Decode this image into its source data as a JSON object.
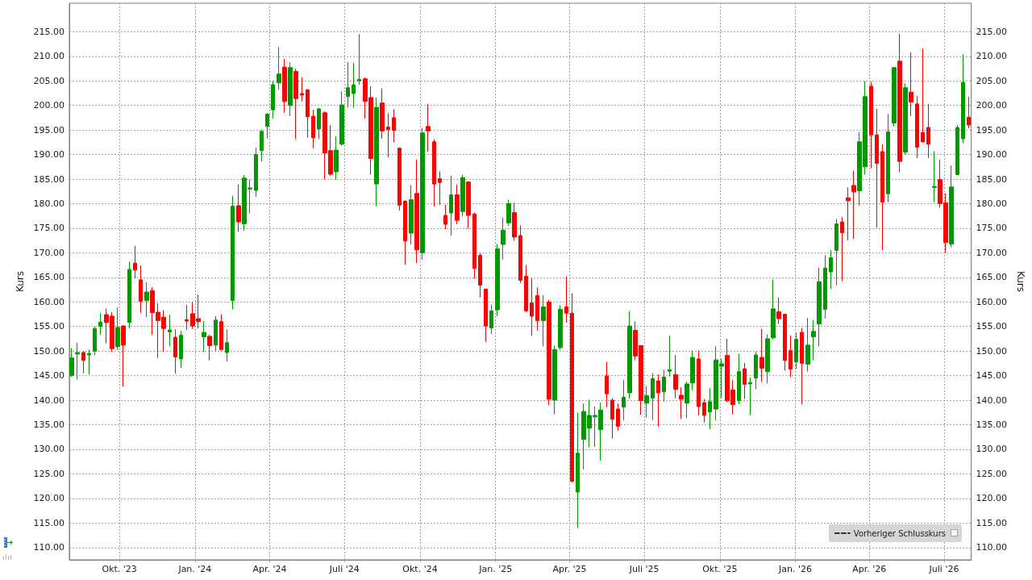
{
  "chart_data": {
    "type": "candlestick",
    "ylabel": "Kurs",
    "y2label": "Kurs",
    "x": [
      "2023-08-04",
      "2023-08-11",
      "2023-08-18",
      "2023-08-25",
      "2023-09-01",
      "2023-09-08",
      "2023-09-15",
      "2023-09-22",
      "2023-09-29",
      "2023-10-06",
      "2023-10-13",
      "2023-10-20",
      "2023-10-27",
      "2023-11-03",
      "2023-11-10",
      "2023-11-17",
      "2023-11-24",
      "2023-12-01",
      "2023-12-08",
      "2023-12-15",
      "2023-12-22",
      "2023-12-29",
      "2024-01-05",
      "2024-01-12",
      "2024-01-19",
      "2024-01-26",
      "2024-02-02",
      "2024-02-09",
      "2024-02-16",
      "2024-02-23",
      "2024-03-01",
      "2024-03-08",
      "2024-03-15",
      "2024-03-22",
      "2024-03-29",
      "2024-04-05",
      "2024-04-12",
      "2024-04-19",
      "2024-04-26",
      "2024-05-03",
      "2024-05-10",
      "2024-05-17",
      "2024-05-24",
      "2024-05-31",
      "2024-06-07",
      "2024-06-14",
      "2024-06-21",
      "2024-06-28",
      "2024-07-05",
      "2024-07-12",
      "2024-07-19",
      "2024-07-26",
      "2024-08-02",
      "2024-08-09",
      "2024-08-16",
      "2024-08-23",
      "2024-08-30",
      "2024-09-06",
      "2024-09-13",
      "2024-09-20",
      "2024-09-27",
      "2024-10-04",
      "2024-10-11",
      "2024-10-18",
      "2024-10-25",
      "2024-11-01",
      "2024-11-08",
      "2024-11-15",
      "2024-11-22",
      "2024-11-29",
      "2024-12-06",
      "2024-12-13",
      "2024-12-20",
      "2024-12-27",
      "2025-01-03",
      "2025-01-10",
      "2025-01-17",
      "2025-01-24",
      "2025-01-31",
      "2025-02-07",
      "2025-02-14",
      "2025-02-21",
      "2025-02-28",
      "2025-03-07",
      "2025-03-14",
      "2025-03-21",
      "2025-03-28",
      "2025-04-04",
      "2025-04-11",
      "2025-04-18",
      "2025-04-25",
      "2025-05-02",
      "2025-05-09",
      "2025-05-16",
      "2025-05-23",
      "2025-05-30",
      "2025-06-06",
      "2025-06-13",
      "2025-06-20",
      "2025-06-27",
      "2025-07-04",
      "2025-07-11",
      "2025-07-18",
      "2025-07-25",
      "2025-08-01",
      "2025-08-08",
      "2025-08-15",
      "2025-08-22",
      "2025-08-29",
      "2025-09-05",
      "2025-09-12",
      "2025-09-19",
      "2025-09-26",
      "2025-10-03",
      "2025-10-10",
      "2025-10-17",
      "2025-10-24",
      "2025-10-31",
      "2025-11-07",
      "2025-11-14",
      "2025-11-21",
      "2025-11-28",
      "2025-12-05",
      "2025-12-12",
      "2025-12-19",
      "2025-12-26",
      "2026-01-02",
      "2026-01-09",
      "2026-01-16",
      "2026-01-23",
      "2026-01-30",
      "2026-02-06",
      "2026-02-13",
      "2026-02-20",
      "2026-02-27",
      "2026-03-06",
      "2026-03-13",
      "2026-03-20",
      "2026-03-27",
      "2026-04-03",
      "2026-04-10",
      "2026-04-17",
      "2026-04-24",
      "2026-05-01",
      "2026-05-08",
      "2026-05-15",
      "2026-05-22",
      "2026-05-29",
      "2026-06-05",
      "2026-06-12",
      "2026-06-19",
      "2026-06-26",
      "2026-07-03",
      "2026-07-10",
      "2026-07-17",
      "2026-07-24",
      "2026-07-31"
    ],
    "series": [
      {
        "ohlc": [
          [
            145.0,
            150.6,
            144.7,
            148.6
          ],
          [
            149.4,
            151.7,
            144.2,
            149.7
          ],
          [
            149.7,
            150.0,
            145.5,
            148.1
          ],
          [
            149.2,
            150.3,
            145.2,
            149.5
          ],
          [
            150.0,
            155.0,
            149.1,
            154.6
          ],
          [
            155.0,
            157.7,
            153.3,
            155.9
          ],
          [
            157.4,
            158.6,
            151.6,
            155.8
          ],
          [
            157.1,
            157.9,
            149.8,
            150.5
          ],
          [
            150.9,
            158.9,
            150.2,
            154.8
          ],
          [
            155.1,
            155.3,
            142.8,
            151.2
          ],
          [
            155.8,
            168.2,
            154.6,
            166.6
          ],
          [
            167.9,
            171.4,
            164.8,
            166.5
          ],
          [
            164.5,
            167.4,
            157.7,
            160.1
          ],
          [
            160.3,
            164.0,
            156.9,
            162.0
          ],
          [
            162.3,
            163.0,
            153.3,
            157.8
          ],
          [
            157.9,
            159.7,
            148.6,
            156.2
          ],
          [
            156.9,
            158.3,
            149.9,
            154.6
          ],
          [
            153.9,
            157.4,
            151.0,
            154.3
          ],
          [
            152.8,
            154.4,
            145.4,
            148.8
          ],
          [
            148.4,
            154.1,
            146.6,
            153.2
          ],
          [
            156.4,
            159.4,
            154.3,
            156.1
          ],
          [
            157.6,
            159.9,
            154.5,
            155.1
          ],
          [
            156.6,
            161.5,
            154.6,
            156.0
          ],
          [
            152.9,
            156.1,
            149.8,
            153.8
          ],
          [
            153.0,
            153.3,
            148.1,
            151.1
          ],
          [
            151.2,
            157.1,
            150.0,
            156.3
          ],
          [
            156.0,
            157.5,
            150.1,
            150.3
          ],
          [
            149.7,
            154.4,
            147.9,
            151.7
          ],
          [
            160.3,
            181.6,
            158.5,
            179.5
          ],
          [
            179.6,
            183.9,
            174.3,
            176.3
          ],
          [
            175.9,
            185.8,
            174.5,
            185.2
          ],
          [
            183.0,
            184.9,
            178.0,
            183.2
          ],
          [
            182.7,
            191.4,
            181.4,
            190.0
          ],
          [
            190.8,
            195.0,
            188.6,
            194.7
          ],
          [
            195.7,
            198.5,
            193.3,
            198.2
          ],
          [
            199.1,
            205.0,
            197.3,
            204.2
          ],
          [
            204.6,
            211.9,
            203.2,
            206.4
          ],
          [
            207.8,
            209.5,
            198.5,
            200.8
          ],
          [
            200.0,
            208.8,
            197.8,
            207.7
          ],
          [
            206.9,
            207.5,
            193.1,
            201.4
          ],
          [
            202.4,
            205.7,
            200.8,
            202.1
          ],
          [
            203.2,
            203.3,
            193.4,
            197.7
          ],
          [
            197.8,
            199.1,
            191.3,
            193.4
          ],
          [
            195.2,
            199.5,
            193.1,
            199.3
          ],
          [
            198.5,
            198.8,
            184.9,
            190.3
          ],
          [
            190.8,
            196.0,
            185.6,
            186.0
          ],
          [
            186.5,
            193.7,
            184.9,
            190.9
          ],
          [
            192.1,
            202.9,
            191.8,
            200.1
          ],
          [
            201.8,
            208.8,
            199.6,
            203.6
          ],
          [
            202.4,
            208.7,
            199.5,
            204.2
          ],
          [
            205.0,
            214.5,
            204.2,
            205.3
          ],
          [
            205.4,
            205.7,
            197.3,
            200.8
          ],
          [
            201.6,
            203.9,
            185.9,
            189.2
          ],
          [
            184.0,
            201.6,
            179.5,
            199.6
          ],
          [
            200.5,
            203.5,
            193.2,
            194.8
          ],
          [
            195.6,
            198.4,
            189.4,
            195.1
          ],
          [
            197.5,
            199.2,
            192.5,
            194.9
          ],
          [
            191.3,
            191.4,
            178.6,
            179.7
          ],
          [
            180.5,
            180.7,
            167.6,
            172.4
          ],
          [
            174.0,
            183.8,
            171.7,
            180.8
          ],
          [
            182.1,
            189.0,
            167.9,
            170.6
          ],
          [
            170.0,
            195.4,
            168.6,
            194.4
          ],
          [
            195.7,
            200.3,
            190.6,
            194.8
          ],
          [
            192.6,
            193.1,
            179.4,
            184.0
          ],
          [
            185.1,
            186.6,
            179.7,
            184.3
          ],
          [
            177.6,
            179.8,
            174.8,
            175.8
          ],
          [
            178.1,
            185.7,
            173.5,
            181.8
          ],
          [
            181.8,
            183.9,
            175.8,
            176.6
          ],
          [
            178.4,
            185.9,
            177.4,
            185.3
          ],
          [
            184.4,
            184.6,
            175.0,
            177.6
          ],
          [
            177.9,
            178.2,
            164.7,
            166.8
          ],
          [
            169.5,
            169.9,
            160.9,
            163.4
          ],
          [
            162.6,
            162.7,
            151.9,
            155.1
          ],
          [
            154.7,
            159.5,
            153.5,
            158.2
          ],
          [
            158.4,
            171.8,
            157.1,
            170.8
          ],
          [
            171.7,
            177.2,
            168.6,
            174.6
          ],
          [
            176.1,
            180.8,
            175.5,
            180.0
          ],
          [
            178.2,
            180.2,
            172.4,
            173.2
          ],
          [
            173.5,
            175.6,
            163.8,
            164.4
          ],
          [
            165.2,
            167.5,
            157.9,
            158.2
          ],
          [
            159.8,
            164.8,
            153.1,
            157.1
          ],
          [
            161.3,
            162.9,
            154.2,
            156.2
          ],
          [
            156.2,
            161.4,
            151.0,
            159.0
          ],
          [
            160.0,
            160.4,
            139.0,
            140.2
          ],
          [
            140.0,
            151.1,
            137.1,
            150.3
          ],
          [
            150.7,
            159.3,
            150.2,
            158.5
          ],
          [
            159.0,
            165.2,
            155.8,
            157.7
          ],
          [
            157.7,
            161.8,
            123.2,
            123.5
          ],
          [
            121.3,
            137.5,
            114.0,
            129.2
          ],
          [
            132.0,
            139.3,
            125.9,
            137.7
          ],
          [
            134.3,
            140.1,
            130.4,
            136.9
          ],
          [
            136.6,
            138.7,
            130.5,
            136.9
          ],
          [
            134.0,
            139.5,
            127.7,
            138.0
          ],
          [
            144.9,
            147.8,
            138.6,
            141.3
          ],
          [
            140.0,
            140.4,
            132.2,
            136.1
          ],
          [
            138.2,
            139.3,
            133.8,
            134.7
          ],
          [
            138.6,
            144.1,
            135.9,
            140.6
          ],
          [
            141.5,
            158.1,
            140.3,
            155.1
          ],
          [
            154.2,
            156.0,
            148.1,
            149.0
          ],
          [
            151.1,
            151.2,
            137.0,
            139.9
          ],
          [
            139.4,
            142.9,
            136.4,
            140.9
          ],
          [
            140.4,
            145.5,
            135.9,
            144.4
          ],
          [
            143.9,
            145.2,
            134.6,
            141.5
          ],
          [
            141.7,
            146.2,
            139.7,
            144.7
          ],
          [
            145.9,
            153.1,
            144.8,
            146.2
          ],
          [
            145.2,
            149.2,
            140.4,
            142.2
          ],
          [
            141.0,
            142.6,
            136.2,
            140.2
          ],
          [
            139.4,
            143.8,
            136.3,
            143.3
          ],
          [
            143.5,
            150.1,
            142.0,
            148.7
          ],
          [
            148.4,
            150.1,
            136.9,
            138.7
          ],
          [
            139.5,
            140.2,
            135.4,
            136.9
          ],
          [
            137.6,
            142.4,
            134.1,
            139.7
          ],
          [
            138.2,
            151.0,
            135.9,
            148.2
          ],
          [
            146.9,
            148.4,
            140.5,
            147.4
          ],
          [
            149.1,
            152.5,
            139.6,
            139.9
          ],
          [
            142.1,
            144.1,
            137.1,
            139.1
          ],
          [
            139.9,
            149.4,
            139.2,
            145.8
          ],
          [
            146.4,
            147.6,
            140.2,
            143.2
          ],
          [
            143.3,
            144.6,
            136.9,
            143.6
          ],
          [
            144.5,
            149.9,
            142.2,
            149.2
          ],
          [
            148.7,
            154.5,
            143.7,
            146.5
          ],
          [
            145.8,
            153.4,
            143.4,
            152.5
          ],
          [
            152.7,
            164.6,
            152.3,
            158.6
          ],
          [
            158.0,
            160.9,
            155.5,
            156.6
          ],
          [
            157.5,
            157.6,
            146.0,
            148.1
          ],
          [
            150.1,
            153.2,
            144.7,
            146.3
          ],
          [
            147.8,
            153.7,
            146.4,
            152.4
          ],
          [
            153.8,
            154.7,
            139.2,
            147.5
          ],
          [
            147.3,
            156.8,
            145.8,
            151.2
          ],
          [
            152.9,
            156.3,
            148.1,
            154.0
          ],
          [
            155.5,
            167.0,
            150.9,
            164.1
          ],
          [
            158.5,
            169.5,
            156.6,
            166.9
          ],
          [
            166.1,
            170.6,
            162.6,
            169.0
          ],
          [
            170.5,
            176.9,
            163.4,
            175.9
          ],
          [
            176.3,
            177.3,
            164.2,
            174.1
          ],
          [
            181.2,
            183.3,
            172.5,
            180.6
          ],
          [
            183.7,
            186.7,
            172.8,
            182.4
          ],
          [
            182.6,
            194.6,
            179.6,
            192.6
          ],
          [
            187.5,
            204.9,
            185.9,
            201.8
          ],
          [
            203.9,
            204.8,
            187.2,
            194.0
          ],
          [
            194.0,
            199.3,
            175.1,
            188.2
          ],
          [
            190.6,
            192.1,
            170.5,
            180.3
          ],
          [
            182.0,
            198.3,
            180.3,
            194.6
          ],
          [
            196.4,
            207.8,
            195.7,
            207.7
          ],
          [
            209.0,
            214.6,
            186.4,
            188.6
          ],
          [
            190.5,
            204.5,
            190.0,
            203.6
          ],
          [
            202.7,
            210.8,
            197.8,
            200.7
          ],
          [
            200.3,
            201.9,
            189.3,
            191.5
          ],
          [
            194.5,
            211.6,
            192.4,
            192.6
          ],
          [
            195.5,
            200.3,
            189.3,
            192.1
          ],
          [
            183.3,
            190.7,
            180.3,
            183.5
          ],
          [
            184.9,
            189.0,
            179.2,
            180.0
          ],
          [
            180.2,
            182.1,
            170.0,
            172.1
          ],
          [
            171.8,
            187.8,
            171.1,
            183.4
          ],
          [
            185.9,
            196.0,
            185.8,
            195.5
          ],
          [
            193.2,
            210.4,
            192.3,
            204.7
          ],
          [
            197.6,
            201.8,
            195.3,
            196.0
          ]
        ],
        "colors": [
          "#009900",
          "#009900",
          "#ff0000",
          "#009900",
          "#009900",
          "#009900",
          "#ff0000",
          "#ff0000",
          "#009900",
          "#ff0000",
          "#009900",
          "#ff0000",
          "#ff0000",
          "#009900",
          "#ff0000",
          "#ff0000",
          "#ff0000",
          "#009900",
          "#ff0000",
          "#009900",
          "#ff0000",
          "#ff0000",
          "#ff0000",
          "#009900",
          "#ff0000",
          "#009900",
          "#ff0000",
          "#009900",
          "#009900",
          "#ff0000",
          "#009900",
          "#009900",
          "#009900",
          "#009900",
          "#009900",
          "#009900",
          "#009900",
          "#ff0000",
          "#009900",
          "#ff0000",
          "#ff0000",
          "#ff0000",
          "#ff0000",
          "#009900",
          "#ff0000",
          "#ff0000",
          "#009900",
          "#009900",
          "#009900",
          "#009900",
          "#009900",
          "#ff0000",
          "#ff0000",
          "#009900",
          "#ff0000",
          "#ff0000",
          "#ff0000",
          "#ff0000",
          "#ff0000",
          "#009900",
          "#ff0000",
          "#009900",
          "#ff0000",
          "#ff0000",
          "#ff0000",
          "#ff0000",
          "#009900",
          "#ff0000",
          "#009900",
          "#ff0000",
          "#ff0000",
          "#ff0000",
          "#ff0000",
          "#009900",
          "#009900",
          "#009900",
          "#009900",
          "#ff0000",
          "#ff0000",
          "#ff0000",
          "#ff0000",
          "#ff0000",
          "#009900",
          "#ff0000",
          "#009900",
          "#009900",
          "#ff0000",
          "#ff0000",
          "#009900",
          "#009900",
          "#009900",
          "#009900",
          "#009900",
          "#ff0000",
          "#ff0000",
          "#ff0000",
          "#009900",
          "#009900",
          "#ff0000",
          "#ff0000",
          "#009900",
          "#009900",
          "#ff0000",
          "#009900",
          "#009900",
          "#ff0000",
          "#ff0000",
          "#009900",
          "#009900",
          "#ff0000",
          "#ff0000",
          "#009900",
          "#009900",
          "#009900",
          "#ff0000",
          "#ff0000",
          "#009900",
          "#ff0000",
          "#009900",
          "#009900",
          "#ff0000",
          "#009900",
          "#009900",
          "#ff0000",
          "#ff0000",
          "#ff0000",
          "#009900",
          "#ff0000",
          "#009900",
          "#009900",
          "#009900",
          "#009900",
          "#009900",
          "#009900",
          "#ff0000",
          "#ff0000",
          "#ff0000",
          "#009900",
          "#009900",
          "#ff0000",
          "#ff0000",
          "#ff0000",
          "#009900",
          "#009900",
          "#ff0000",
          "#009900",
          "#ff0000",
          "#ff0000",
          "#ff0000",
          "#ff0000",
          "#009900",
          "#ff0000",
          "#ff0000",
          "#009900",
          "#009900",
          "#009900",
          "#ff0000"
        ]
      },
      {
        "type": "line",
        "name": "Vorheriger Schlusskurs",
        "color": "#333333",
        "line_style": "dashed",
        "values": [
          null,
          null,
          null,
          null,
          null,
          null,
          null,
          null,
          null,
          null,
          null,
          null,
          null,
          null,
          null,
          null,
          null,
          null,
          null,
          null,
          null,
          null,
          null,
          null,
          null,
          null,
          null,
          null,
          null,
          null,
          null,
          null,
          null,
          null,
          null,
          null,
          null,
          null,
          null,
          null,
          null,
          null,
          null,
          null,
          null,
          null,
          null,
          null,
          null,
          null,
          null,
          null,
          null,
          null,
          null,
          null,
          null,
          null,
          null,
          null,
          null,
          null,
          null,
          null,
          null,
          null,
          null,
          null,
          null,
          null,
          null,
          null,
          null,
          null,
          null,
          null,
          null,
          null,
          null,
          null,
          null,
          null,
          null,
          null,
          null,
          null,
          null,
          null,
          null,
          null,
          null,
          null,
          null,
          null,
          null,
          null,
          null,
          null,
          null,
          null,
          null,
          null,
          null,
          null,
          null,
          null,
          null,
          null,
          null,
          null,
          null,
          null,
          null,
          null,
          null,
          null,
          null,
          null,
          null,
          null,
          null,
          null,
          null,
          null,
          null,
          null,
          null,
          null,
          null,
          null,
          null,
          null,
          null,
          null,
          null,
          null,
          null,
          null,
          null,
          null,
          null,
          null,
          null,
          null,
          null,
          null,
          null,
          null,
          null,
          null,
          null,
          null,
          null,
          null,
          null,
          null,
          null
        ]
      }
    ],
    "xlim": [
      "2023-08-01",
      "2026-08-03"
    ],
    "xticks": [
      {
        "value": "2023-10-01",
        "label": "Okt. '23"
      },
      {
        "value": "2024-01-01",
        "label": "Jan. '24"
      },
      {
        "value": "2024-04-01",
        "label": "Apr. '24"
      },
      {
        "value": "2024-07-01",
        "label": "Juli '24"
      },
      {
        "value": "2024-10-01",
        "label": "Okt. '24"
      },
      {
        "value": "2025-01-01",
        "label": "Jan. '25"
      },
      {
        "value": "2025-04-01",
        "label": "Apr. '25"
      },
      {
        "value": "2025-07-01",
        "label": "Juli '25"
      },
      {
        "value": "2025-10-01",
        "label": "Okt. '25"
      },
      {
        "value": "2026-01-01",
        "label": "Jan. '26"
      },
      {
        "value": "2026-04-01",
        "label": "Apr. '26"
      },
      {
        "value": "2026-07-01",
        "label": "Juli '26"
      }
    ],
    "ylim": [
      107.5,
      220.8
    ],
    "yticks": [
      {
        "value": 110,
        "label": "110.00"
      },
      {
        "value": 115,
        "label": "115.00"
      },
      {
        "value": 120,
        "label": "120.00"
      },
      {
        "value": 125,
        "label": "125.00"
      },
      {
        "value": 130,
        "label": "130.00"
      },
      {
        "value": 135,
        "label": "135.00"
      },
      {
        "value": 140,
        "label": "140.00"
      },
      {
        "value": 145,
        "label": "145.00"
      },
      {
        "value": 150,
        "label": "150.00"
      },
      {
        "value": 155,
        "label": "155.00"
      },
      {
        "value": 160,
        "label": "160.00"
      },
      {
        "value": 165,
        "label": "165.00"
      },
      {
        "value": 170,
        "label": "170.00"
      },
      {
        "value": 175,
        "label": "175.00"
      },
      {
        "value": 180,
        "label": "180.00"
      },
      {
        "value": 185,
        "label": "185.00"
      },
      {
        "value": 190,
        "label": "190.00"
      },
      {
        "value": 195,
        "label": "195.00"
      },
      {
        "value": 200,
        "label": "200.00"
      },
      {
        "value": 205,
        "label": "205.00"
      },
      {
        "value": 210,
        "label": "210.00"
      },
      {
        "value": 215,
        "label": "215.00"
      }
    ],
    "y2lim": [
      107.5,
      220.8
    ],
    "y2ticks": [
      {
        "value": 110,
        "label": "110.00"
      },
      {
        "value": 115,
        "label": "115.00"
      },
      {
        "value": 120,
        "label": "120.00"
      },
      {
        "value": 125,
        "label": "125.00"
      },
      {
        "value": 130,
        "label": "130.00"
      },
      {
        "value": 135,
        "label": "135.00"
      },
      {
        "value": 140,
        "label": "140.00"
      },
      {
        "value": 145,
        "label": "145.00"
      },
      {
        "value": 150,
        "label": "150.00"
      },
      {
        "value": 155,
        "label": "155.00"
      },
      {
        "value": 160,
        "label": "160.00"
      },
      {
        "value": 165,
        "label": "165.00"
      },
      {
        "value": 170,
        "label": "170.00"
      },
      {
        "value": 175,
        "label": "175.00"
      },
      {
        "value": 180,
        "label": "180.00"
      },
      {
        "value": 185,
        "label": "185.00"
      },
      {
        "value": 190,
        "label": "190.00"
      },
      {
        "value": 195,
        "label": "195.00"
      },
      {
        "value": 200,
        "label": "200.00"
      },
      {
        "value": 205,
        "label": "205.00"
      },
      {
        "value": 210,
        "label": "210.00"
      },
      {
        "value": 215,
        "label": "215.00"
      }
    ],
    "grid": true,
    "legend": "bottom right"
  }
}
